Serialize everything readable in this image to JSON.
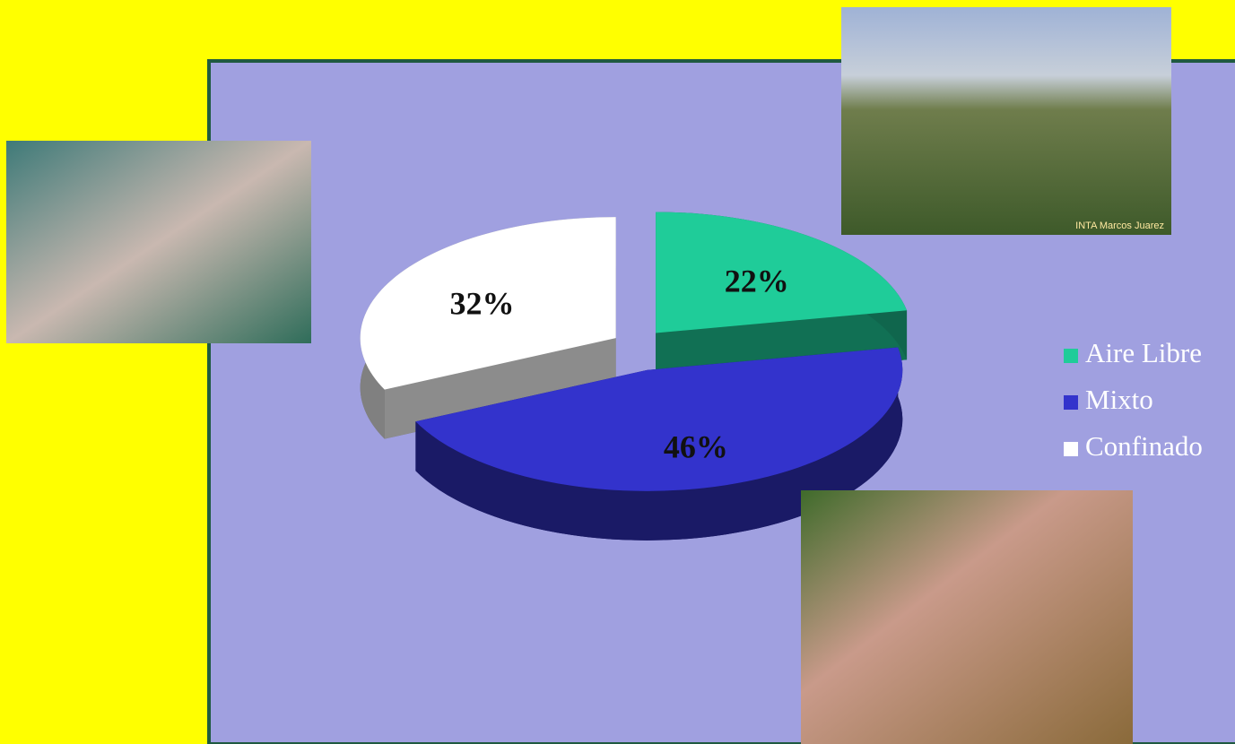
{
  "chart_data": {
    "type": "pie3d",
    "categories": [
      "Aire Libre",
      "Mixto",
      "Confinado"
    ],
    "values": [
      22,
      46,
      32
    ],
    "value_labels": [
      "22%",
      "46%",
      "32%"
    ],
    "colors": [
      "#1fcc99",
      "#3333cc",
      "#ffffff"
    ],
    "legend": "right",
    "photo_caption": "INTA Marcos Juarez"
  }
}
